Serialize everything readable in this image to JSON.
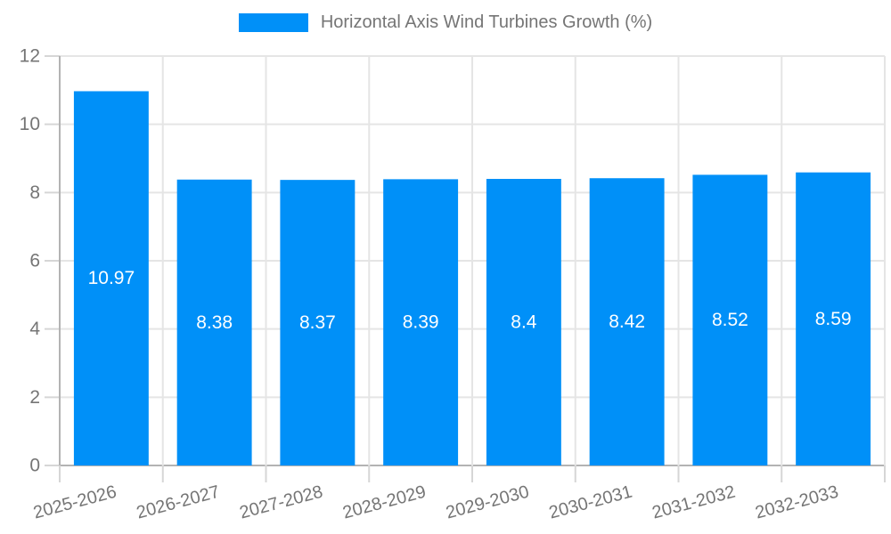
{
  "chart_data": {
    "type": "bar",
    "title": "Horizontal Axis Wind Turbines Growth (%)",
    "legend": {
      "position": "top",
      "label": "Horizontal Axis Wind Turbines Growth (%)"
    },
    "categories": [
      "2025-2026",
      "2026-2027",
      "2027-2028",
      "2028-2029",
      "2029-2030",
      "2030-2031",
      "2031-2032",
      "2032-2033"
    ],
    "values": [
      10.97,
      8.38,
      8.37,
      8.39,
      8.4,
      8.42,
      8.52,
      8.59
    ],
    "value_labels": [
      "10.97",
      "8.38",
      "8.37",
      "8.39",
      "8.4",
      "8.42",
      "8.52",
      "8.59"
    ],
    "xlabel": "",
    "ylabel": "",
    "ylim": [
      0,
      12
    ],
    "yticks": [
      0,
      2,
      4,
      6,
      8,
      10,
      12
    ],
    "grid": "on",
    "x_tick_label_rotation_deg": -15,
    "colors": {
      "bar": "#0090F8",
      "gridline": "#e5e5e5",
      "axis_line": "#b3b3b3",
      "tick_line": "#d6d6d6",
      "tick_text": "#757575",
      "value_text": "#ffffff",
      "background": "#ffffff"
    }
  }
}
